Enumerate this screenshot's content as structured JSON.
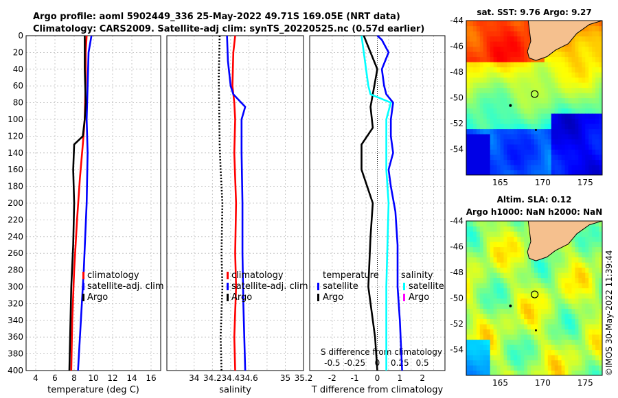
{
  "header": {
    "title_line1": "Argo profile: aoml 5902449_336 25-May-2022 49.71S 169.05E (NRT data)",
    "title_line2": "Climatology: CARS2009. Satellite-adj clim: synTS_20220525.nc (0.57d earlier)"
  },
  "colors": {
    "climatology": "#ff0000",
    "satellite": "#0000ff",
    "argo": "#000000",
    "salinity_sat": "#00ffff",
    "salinity_argo": "#ff00ff"
  },
  "chart_data": [
    {
      "type": "line",
      "name": "temperature",
      "xlabel": "temperature (deg C)",
      "xlim": [
        3,
        17
      ],
      "ylim": [
        0,
        400
      ],
      "y_inverted": true,
      "xticks": [
        4,
        6,
        8,
        10,
        12,
        14,
        16
      ],
      "yticks": [
        0,
        20,
        40,
        60,
        80,
        100,
        120,
        140,
        160,
        180,
        200,
        220,
        240,
        260,
        280,
        300,
        320,
        340,
        360,
        380,
        400
      ],
      "legend": [
        "climatology",
        "satellite-adj. clim",
        "Argo"
      ],
      "series": [
        {
          "name": "climatology",
          "color": "red",
          "points": [
            [
              9.3,
              0
            ],
            [
              9.2,
              20
            ],
            [
              9.2,
              50
            ],
            [
              9.1,
              100
            ],
            [
              8.9,
              130
            ],
            [
              8.6,
              170
            ],
            [
              8.3,
              220
            ],
            [
              8.0,
              280
            ],
            [
              7.8,
              340
            ],
            [
              7.7,
              400
            ]
          ]
        },
        {
          "name": "satellite-adj. clim",
          "color": "blue",
          "points": [
            [
              9.8,
              0
            ],
            [
              9.5,
              20
            ],
            [
              9.4,
              60
            ],
            [
              9.3,
              100
            ],
            [
              9.4,
              140
            ],
            [
              9.3,
              200
            ],
            [
              9.0,
              280
            ],
            [
              8.7,
              340
            ],
            [
              8.4,
              400
            ]
          ]
        },
        {
          "name": "Argo",
          "color": "black",
          "points": [
            [
              9.1,
              0
            ],
            [
              9.1,
              40
            ],
            [
              9.2,
              80
            ],
            [
              9.1,
              100
            ],
            [
              8.9,
              120
            ],
            [
              8.0,
              130
            ],
            [
              7.9,
              160
            ],
            [
              8.0,
              200
            ],
            [
              7.9,
              250
            ],
            [
              7.7,
              300
            ],
            [
              7.6,
              350
            ],
            [
              7.5,
              400
            ]
          ]
        }
      ]
    },
    {
      "type": "line",
      "name": "salinity",
      "xlabel": "salinity",
      "xlim": [
        33.7,
        35.2
      ],
      "ylim": [
        0,
        400
      ],
      "xticks": [
        34,
        34.2,
        34.4,
        34.6,
        35,
        35.2
      ],
      "xtick_labels": [
        "34",
        "34.2",
        "34.4",
        "34.6",
        "35",
        "35.2"
      ],
      "legend": [
        "climatology",
        "satellite-adj. clim",
        "Argo"
      ],
      "series": [
        {
          "name": "climatology",
          "color": "red",
          "points": [
            [
              34.45,
              0
            ],
            [
              34.43,
              20
            ],
            [
              34.42,
              60
            ],
            [
              34.44,
              80
            ],
            [
              34.45,
              100
            ],
            [
              34.44,
              140
            ],
            [
              34.46,
              200
            ],
            [
              34.45,
              260
            ],
            [
              34.46,
              300
            ],
            [
              34.44,
              360
            ],
            [
              34.45,
              400
            ]
          ]
        },
        {
          "name": "satellite-adj. clim",
          "color": "blue",
          "points": [
            [
              34.36,
              0
            ],
            [
              34.37,
              30
            ],
            [
              34.4,
              60
            ],
            [
              34.43,
              70
            ],
            [
              34.56,
              85
            ],
            [
              34.52,
              100
            ],
            [
              34.52,
              140
            ],
            [
              34.53,
              200
            ],
            [
              34.53,
              260
            ],
            [
              34.54,
              320
            ],
            [
              34.56,
              400
            ]
          ]
        },
        {
          "name": "Argo",
          "color": "black",
          "points": [
            [
              34.28,
              0
            ],
            [
              34.27,
              50
            ],
            [
              34.28,
              130
            ],
            [
              34.29,
              160
            ],
            [
              34.31,
              200
            ],
            [
              34.3,
              260
            ],
            [
              34.31,
              300
            ],
            [
              34.29,
              360
            ],
            [
              34.3,
              400
            ]
          ]
        }
      ]
    },
    {
      "type": "line",
      "name": "difference",
      "xlabel": "T difference from climatology",
      "xlabel_top": "S difference from climatology",
      "xlim": [
        -3,
        3
      ],
      "ylim": [
        0,
        400
      ],
      "xticks": [
        -2,
        -1,
        0,
        1,
        2
      ],
      "s_ticks": [
        "-0.5",
        "-0.25",
        "0",
        "0.25",
        "0.5"
      ],
      "s_tick_positions": [
        -2,
        -1,
        0,
        1,
        2
      ],
      "legend_temperature": [
        "temperature",
        "satellite",
        "Argo"
      ],
      "legend_salinity": [
        "salinity",
        "satellite",
        "Argo"
      ],
      "series": [
        {
          "name": "T satellite",
          "color": "blue",
          "points": [
            [
              0.0,
              0
            ],
            [
              0.2,
              5
            ],
            [
              0.5,
              20
            ],
            [
              0.2,
              40
            ],
            [
              0.3,
              60
            ],
            [
              0.4,
              70
            ],
            [
              0.7,
              80
            ],
            [
              0.6,
              100
            ],
            [
              0.6,
              120
            ],
            [
              0.7,
              140
            ],
            [
              0.5,
              160
            ],
            [
              0.6,
              180
            ],
            [
              0.8,
              210
            ],
            [
              0.9,
              250
            ],
            [
              0.9,
              300
            ],
            [
              1.0,
              340
            ],
            [
              1.1,
              400
            ]
          ]
        },
        {
          "name": "T Argo",
          "color": "black",
          "points": [
            [
              -0.6,
              0
            ],
            [
              -0.3,
              20
            ],
            [
              0.0,
              40
            ],
            [
              -0.2,
              70
            ],
            [
              -0.3,
              85
            ],
            [
              -0.2,
              110
            ],
            [
              -0.7,
              130
            ],
            [
              -0.7,
              160
            ],
            [
              -0.2,
              200
            ],
            [
              -0.3,
              240
            ],
            [
              -0.4,
              300
            ],
            [
              -0.1,
              360
            ],
            [
              0.0,
              400
            ]
          ]
        },
        {
          "name": "S satellite",
          "color": "cyan",
          "points": [
            [
              -0.7,
              0
            ],
            [
              -0.6,
              20
            ],
            [
              -0.4,
              60
            ],
            [
              -0.3,
              70
            ],
            [
              0.6,
              80
            ],
            [
              0.4,
              100
            ],
            [
              0.4,
              160
            ],
            [
              0.5,
              200
            ],
            [
              0.4,
              300
            ],
            [
              0.4,
              400
            ]
          ]
        }
      ]
    },
    {
      "type": "heatmap",
      "name": "sst-map",
      "title": "sat. SST: 9.76 Argo: 9.27",
      "xlim": [
        161,
        177
      ],
      "ylim": [
        -56,
        -44
      ],
      "xticks": [
        "165",
        "170",
        "175"
      ],
      "yticks": [
        "-44",
        "-46",
        "-48",
        "-50",
        "-52",
        "-54"
      ],
      "marker": {
        "lon": 169.05,
        "lat": -49.71
      }
    },
    {
      "type": "heatmap",
      "name": "sla-map",
      "title": "Altim. SLA: 0.12",
      "subtitle": "Argo h1000: NaN h2000: NaN",
      "xlim": [
        161,
        177
      ],
      "ylim": [
        -56,
        -44
      ],
      "xticks": [
        "165",
        "170",
        "175"
      ],
      "yticks": [
        "-44",
        "-46",
        "-48",
        "-50",
        "-52",
        "-54"
      ],
      "marker": {
        "lon": 169.05,
        "lat": -49.71
      }
    }
  ],
  "panels": {
    "temp": {
      "xlabel": "temperature (deg C)",
      "legend": [
        "climatology",
        "satellite-adj. clim",
        "Argo"
      ]
    },
    "sal": {
      "xlabel": "salinity",
      "legend": [
        "climatology",
        "satellite-adj. clim",
        "Argo"
      ]
    },
    "diff": {
      "xlabel": "T difference from climatology",
      "xlabel_top": "S difference from climatology",
      "legend_t_title": "temperature",
      "legend_t1": "satellite",
      "legend_t2": "Argo",
      "legend_s_title": "salinity",
      "legend_s1": "satellite",
      "legend_s2": "Argo"
    },
    "sst": {
      "title": "sat. SST: 9.76 Argo: 9.27"
    },
    "sla": {
      "title": "Altim. SLA: 0.12",
      "subtitle": "Argo h1000: NaN h2000: NaN"
    }
  },
  "credit": "©IMOS 30-May-2022 11:39:44"
}
